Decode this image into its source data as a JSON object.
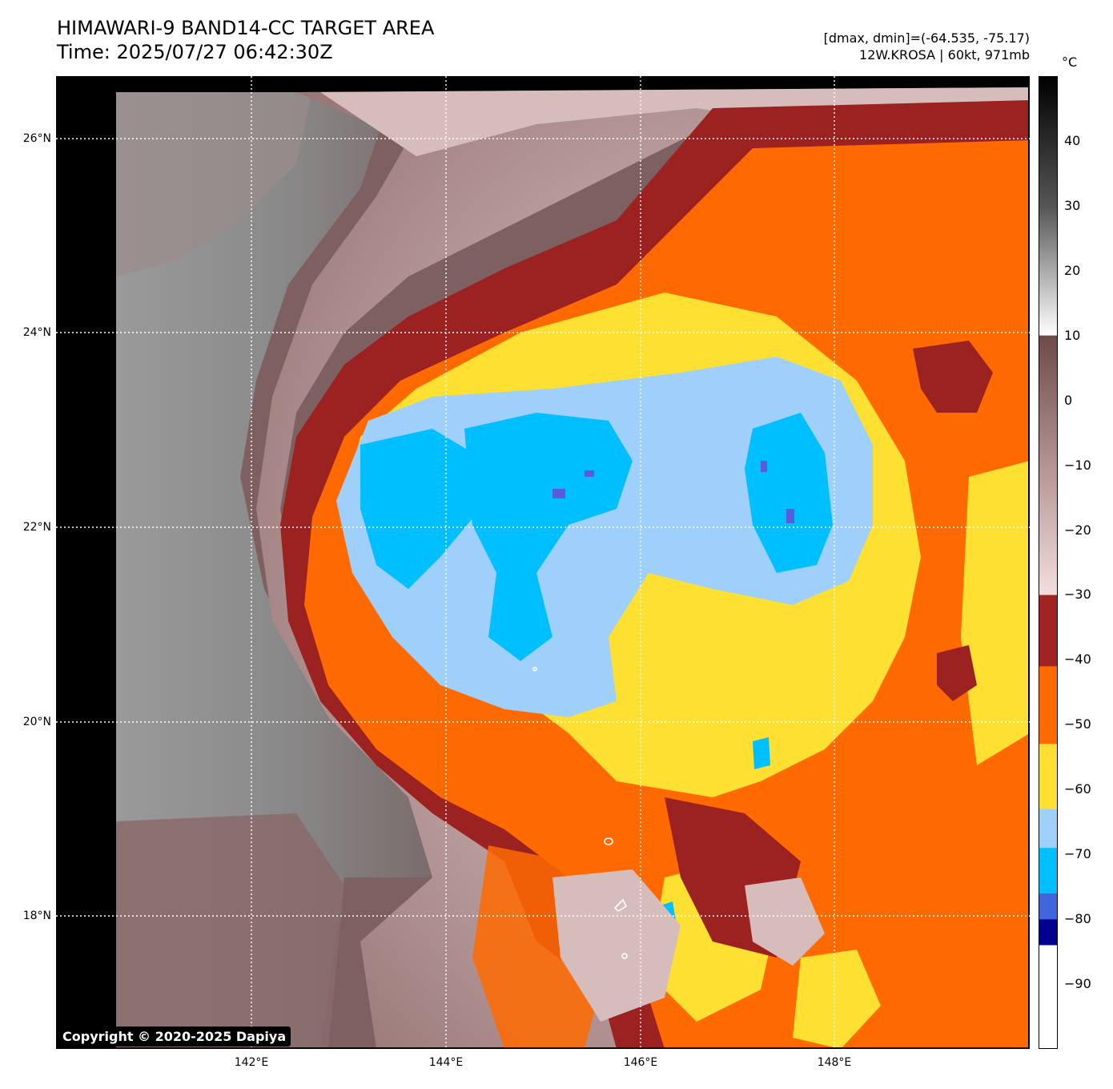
{
  "header": {
    "title_line1": "HIMAWARI-9 BAND14-CC TARGET AREA",
    "title_line2": "Time: 2025/07/27 06:42:30Z",
    "range_text": "[dmax, dmin]=(-64.535, -75.17)",
    "storm_text": "12W.KROSA | 60kt, 971mb"
  },
  "map": {
    "lat_labels": [
      "26°N",
      "24°N",
      "22°N",
      "20°N",
      "18°N"
    ],
    "lon_labels": [
      "142°E",
      "144°E",
      "146°E",
      "148°E"
    ],
    "gridline_style": "dotted white"
  },
  "colorbar": {
    "unit": "°C",
    "tick_labels": [
      "40",
      "30",
      "20",
      "10",
      "0",
      "−10",
      "−20",
      "−30",
      "−40",
      "−50",
      "−60",
      "−70",
      "−80",
      "−90"
    ],
    "bands": [
      {
        "from": 40,
        "to": 50,
        "color": "#000000"
      },
      {
        "from": 30,
        "to": 40,
        "color": "#1e1e1e"
      },
      {
        "from": 20,
        "to": 30,
        "color": "#7a7a7a"
      },
      {
        "from": 10,
        "to": 20,
        "color": "#e6e6e6"
      },
      {
        "from": 0,
        "to": 10,
        "color": "#6e4a48"
      },
      {
        "from": -30,
        "to": 0,
        "color": "#c9a9a6"
      },
      {
        "from": -41,
        "to": -30,
        "color": "#a12423"
      },
      {
        "from": -53,
        "to": -41,
        "color": "#ff6a00"
      },
      {
        "from": -63,
        "to": -53,
        "color": "#fde031"
      },
      {
        "from": -69,
        "to": -63,
        "color": "#9fd0fb"
      },
      {
        "from": -76,
        "to": -69,
        "color": "#00bfff"
      },
      {
        "from": -80,
        "to": -76,
        "color": "#4066dd"
      },
      {
        "from": -84,
        "to": -80,
        "color": "#000090"
      },
      {
        "from": -100,
        "to": -84,
        "color": "#ffffff"
      }
    ]
  },
  "legend_colors": {
    "warm_land_strip": "#000000",
    "clear_grey": "#8a8a8a",
    "warm_cloud": "#7f6060",
    "thin_cirrus": "#e8d2d2",
    "dark_red": "#9c2222",
    "orange": "#ff6a00",
    "yellow": "#fde031",
    "light_blue": "#9fd0fb",
    "cyan": "#00bfff",
    "violet": "#5b5bdd"
  },
  "footer": {
    "copyright": "Copyright © 2020-2025 Dapiya"
  }
}
